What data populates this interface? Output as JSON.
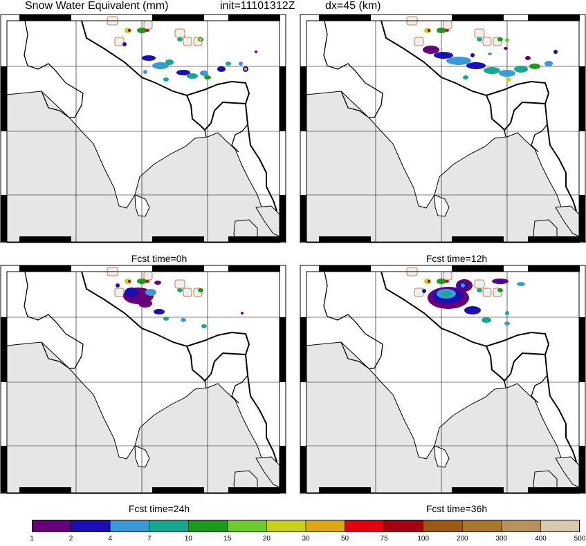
{
  "header": {
    "variable": "Snow Water Equivalent (mm)",
    "init": "init=11101312Z",
    "resolution": "dx=45 (km)"
  },
  "panels": [
    {
      "caption": "Fcst time=0h",
      "time_h": 0
    },
    {
      "caption": "Fcst time=12h",
      "time_h": 12
    },
    {
      "caption": "Fcst time=24h",
      "time_h": 24
    },
    {
      "caption": "Fcst time=36h",
      "time_h": 36
    }
  ],
  "colorbar": {
    "levels": [
      "1",
      "2",
      "4",
      "7",
      "10",
      "15",
      "20",
      "30",
      "50",
      "75",
      "100",
      "200",
      "300",
      "400",
      "500"
    ],
    "colors": [
      "#66007a",
      "#1a0fb4",
      "#3a9ad8",
      "#14a890",
      "#1c9a1c",
      "#6ccc2c",
      "#c8d01c",
      "#dca814",
      "#e40010",
      "#a40012",
      "#9a5a14",
      "#a8782c",
      "#b8925c",
      "#d8c8ac"
    ]
  },
  "map_colors": {
    "land": "#ffffff",
    "ocean": "#e6e6e6",
    "lakes": "#efefef",
    "border": "#000000",
    "lake_edge": "#c08050"
  }
}
